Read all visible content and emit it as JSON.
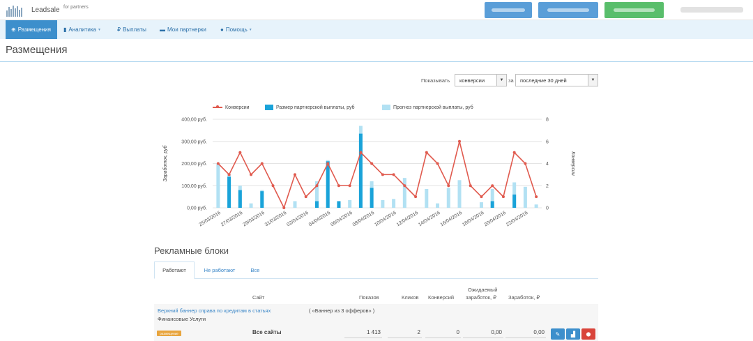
{
  "topbar": {
    "brand": "Leadsale",
    "brand_sub": "for partners",
    "actions": [
      "",
      "",
      ""
    ],
    "user": ""
  },
  "nav": {
    "items": [
      {
        "label": "Размещения",
        "icon": "circle-plus-icon",
        "active": true,
        "caret": false
      },
      {
        "label": "Аналитика",
        "icon": "bar-chart-icon",
        "active": false,
        "caret": true
      },
      {
        "label": "Выплаты",
        "icon": "ruble-icon",
        "active": false,
        "caret": false
      },
      {
        "label": "Мои партнерки",
        "icon": "card-icon",
        "active": false,
        "caret": false
      },
      {
        "label": "Помощь",
        "icon": "help-circle-icon",
        "active": false,
        "caret": true
      }
    ],
    "caret_glyph": "▾"
  },
  "page": {
    "title": "Размещения"
  },
  "filters": {
    "show_label": "Показывать",
    "metric_value": "конверсии",
    "for_label": "за",
    "period_value": "последние 30 дней"
  },
  "colors": {
    "accent": "#3d8fcc",
    "conversions_line": "#e05a4e",
    "payout_bar": "#1aa3d9",
    "forecast_bar": "#b2e1f3",
    "nav_bg": "#e7f3fb",
    "green_button": "#59be6b",
    "badge": "#e8a53d",
    "delete_button": "#d9443a"
  },
  "chart_data": {
    "type": "bar",
    "ylabel": "Заработок, руб",
    "y2label": "Конверсии",
    "ylim": [
      0,
      400
    ],
    "y2lim": [
      0,
      8
    ],
    "y_ticks": [
      "0,00 руб.",
      "100,00 руб.",
      "200,00 руб.",
      "300,00 руб.",
      "400,00 руб."
    ],
    "y2_ticks": [
      "0",
      "2",
      "4",
      "6",
      "8"
    ],
    "grid": true,
    "legend_position": "top",
    "x": [
      "25/03/2016",
      "26/03/2016",
      "27/03/2016",
      "28/03/2016",
      "29/03/2016",
      "30/03/2016",
      "31/03/2016",
      "01/04/2016",
      "02/04/2016",
      "03/04/2016",
      "04/04/2016",
      "05/04/2016",
      "06/04/2016",
      "07/04/2016",
      "08/04/2016",
      "09/04/2016",
      "10/04/2016",
      "11/04/2016",
      "12/04/2016",
      "13/04/2016",
      "14/04/2016",
      "15/04/2016",
      "16/04/2016",
      "17/04/2016",
      "18/04/2016",
      "19/04/2016",
      "20/04/2016",
      "21/04/2016",
      "22/04/2016",
      "23/04/2016"
    ],
    "x_tick_labels": [
      "25/03/2016",
      "27/03/2016",
      "29/03/2016",
      "31/03/2016",
      "02/04/2016",
      "04/04/2016",
      "06/04/2016",
      "08/04/2016",
      "10/04/2016",
      "12/04/2016",
      "14/04/2016",
      "16/04/2016",
      "18/04/2016",
      "20/04/2016",
      "22/04/2016"
    ],
    "series": [
      {
        "name": "Конверсии",
        "type": "line",
        "axis": "right",
        "values": [
          4,
          3,
          5,
          3,
          4,
          2,
          0,
          3,
          1,
          2,
          4,
          2,
          2,
          5,
          4,
          3,
          3,
          2,
          1,
          5,
          4,
          2,
          6,
          2,
          1,
          2,
          1,
          5,
          4,
          1
        ]
      },
      {
        "name": "Размер партнерской выплаты, руб",
        "type": "bar",
        "axis": "left",
        "values": [
          0,
          140,
          80,
          0,
          75,
          0,
          0,
          0,
          0,
          30,
          210,
          30,
          0,
          335,
          90,
          0,
          0,
          0,
          0,
          0,
          0,
          0,
          0,
          0,
          0,
          30,
          0,
          60,
          0,
          0
        ]
      },
      {
        "name": "Прогноз партнерской выплаты, руб",
        "type": "bar",
        "axis": "left",
        "values": [
          200,
          150,
          100,
          20,
          80,
          0,
          0,
          30,
          0,
          120,
          215,
          30,
          35,
          370,
          120,
          35,
          40,
          135,
          0,
          85,
          20,
          90,
          125,
          0,
          25,
          85,
          0,
          115,
          95,
          15
        ]
      }
    ]
  },
  "blocks": {
    "title": "Рекламные блоки",
    "tabs": [
      "Работают",
      "Не работают",
      "Все"
    ],
    "columns": {
      "site": "Сайт",
      "shows": "Показов",
      "clicks": "Кликов",
      "conversions": "Конверсий",
      "expected_1": "Ожидаемый",
      "expected_2": "заработок, ₽",
      "earnings": "Заработок, ₽"
    },
    "row": {
      "name": "Верхний баннер справа по кредитам в статьях",
      "note": "( «Баннер из 3 офферов» )",
      "category": "Финансовые Услуги",
      "badge": "размещение",
      "site": "Все сайты",
      "shows": "1 413",
      "clicks": "2",
      "conversions": "0",
      "expected": "0,00",
      "earnings": "0,00",
      "actions": [
        {
          "icon": "pencil-icon",
          "glyph": "✎"
        },
        {
          "icon": "bar-chart-icon",
          "glyph": "▟"
        },
        {
          "icon": "delete-icon",
          "glyph": "⬤"
        }
      ]
    }
  }
}
